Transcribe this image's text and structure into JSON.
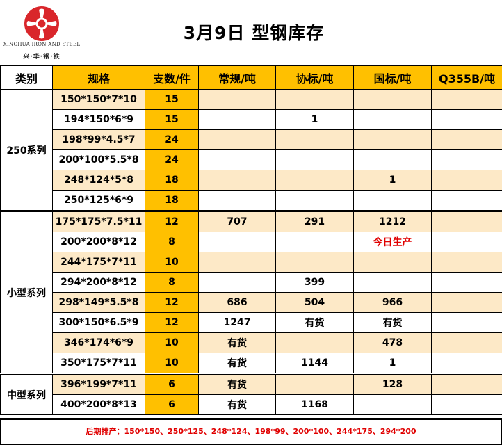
{
  "logo": {
    "name_en": "XINGHUA IRON AND STEEL",
    "name_cn": "兴·华·钢·铁"
  },
  "title": "3月9日 型钢库存",
  "columns": [
    "类别",
    "规格",
    "支数/件",
    "常规/吨",
    "协标/吨",
    "国标/吨",
    "Q355B/吨"
  ],
  "groups": [
    {
      "category": "250系列",
      "rows": [
        {
          "spec": "150*150*7*10",
          "count": "15",
          "regular": "",
          "xieb": "",
          "guob": "",
          "q355b": ""
        },
        {
          "spec": "194*150*6*9",
          "count": "15",
          "regular": "",
          "xieb": "1",
          "guob": "",
          "q355b": ""
        },
        {
          "spec": "198*99*4.5*7",
          "count": "24",
          "regular": "",
          "xieb": "",
          "guob": "",
          "q355b": ""
        },
        {
          "spec": "200*100*5.5*8",
          "count": "24",
          "regular": "",
          "xieb": "",
          "guob": "",
          "q355b": ""
        },
        {
          "spec": "248*124*5*8",
          "count": "18",
          "regular": "",
          "xieb": "",
          "guob": "1",
          "q355b": ""
        },
        {
          "spec": "250*125*6*9",
          "count": "18",
          "regular": "",
          "xieb": "",
          "guob": "",
          "q355b": ""
        }
      ]
    },
    {
      "category": "小型系列",
      "rows": [
        {
          "spec": "175*175*7.5*11",
          "count": "12",
          "regular": "707",
          "xieb": "291",
          "guob": "1212",
          "q355b": ""
        },
        {
          "spec": "200*200*8*12",
          "count": "8",
          "regular": "",
          "xieb": "",
          "guob": "今日生产",
          "q355b": ""
        },
        {
          "spec": "244*175*7*11",
          "count": "10",
          "regular": "",
          "xieb": "",
          "guob": "",
          "q355b": ""
        },
        {
          "spec": "294*200*8*12",
          "count": "8",
          "regular": "",
          "xieb": "399",
          "guob": "",
          "q355b": ""
        },
        {
          "spec": "298*149*5.5*8",
          "count": "12",
          "regular": "686",
          "xieb": "504",
          "guob": "966",
          "q355b": ""
        },
        {
          "spec": "300*150*6.5*9",
          "count": "12",
          "regular": "1247",
          "xieb": "有货",
          "guob": "有货",
          "q355b": ""
        },
        {
          "spec": "346*174*6*9",
          "count": "10",
          "regular": "有货",
          "xieb": "",
          "guob": "478",
          "q355b": ""
        },
        {
          "spec": "350*175*7*11",
          "count": "10",
          "regular": "有货",
          "xieb": "1144",
          "guob": "1",
          "q355b": ""
        }
      ]
    },
    {
      "category": "中型系列",
      "rows": [
        {
          "spec": "396*199*7*11",
          "count": "6",
          "regular": "有货",
          "xieb": "",
          "guob": "128",
          "q355b": ""
        },
        {
          "spec": "400*200*8*13",
          "count": "6",
          "regular": "有货",
          "xieb": "1168",
          "guob": "",
          "q355b": ""
        }
      ]
    }
  ],
  "footer": "后期排产：150*150、250*125、248*124、198*99、200*100、244*175、294*200",
  "colors": {
    "accent": "#ffc000",
    "alt_row": "#fde9c7",
    "highlight_text": "#e00000"
  }
}
